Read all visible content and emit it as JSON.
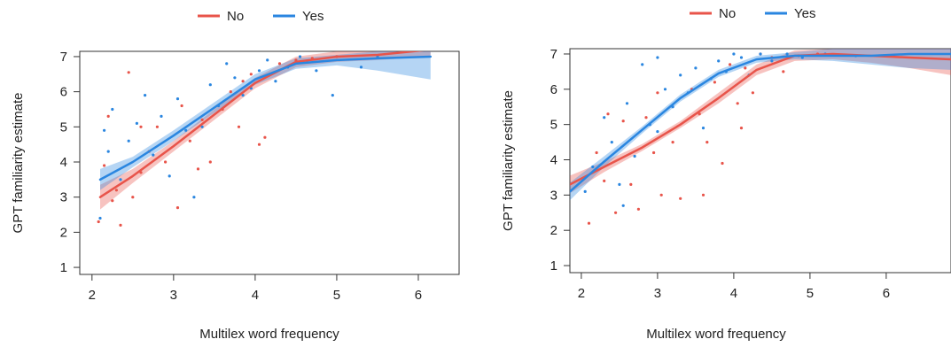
{
  "chart_data": [
    {
      "type": "scatter",
      "xlabel": "Multilex word frequency",
      "ylabel": "GPT familiarity estimate",
      "x_ticks": [
        "2",
        "3",
        "4",
        "5",
        "6"
      ],
      "y_ticks": [
        "1",
        "2",
        "3",
        "4",
        "5",
        "6",
        "7"
      ],
      "xlim": [
        1.85,
        6.5
      ],
      "ylim": [
        0.8,
        7.15
      ],
      "legend": {
        "placement": "top-center",
        "entries": [
          {
            "label": "No",
            "color": "#e8544a"
          },
          {
            "label": "Yes",
            "color": "#2a86e0"
          }
        ]
      },
      "series": [
        {
          "name": "No",
          "color": "#e8544a",
          "trend": {
            "x": [
              2.1,
              2.5,
              3.0,
              3.5,
              4.0,
              4.5,
              5.0,
              5.5,
              6.15
            ],
            "y": [
              3.0,
              3.6,
              4.45,
              5.35,
              6.25,
              6.85,
              7.0,
              7.05,
              7.2
            ],
            "lower": [
              2.65,
              3.4,
              4.3,
              5.2,
              6.1,
              6.7,
              6.85,
              6.9,
              7.0
            ],
            "upper": [
              3.35,
              3.8,
              4.6,
              5.5,
              6.4,
              7.0,
              7.15,
              7.2,
              7.4
            ]
          },
          "points": [
            [
              2.08,
              2.3
            ],
            [
              2.15,
              3.9
            ],
            [
              2.2,
              5.3
            ],
            [
              2.25,
              2.9
            ],
            [
              2.3,
              3.2
            ],
            [
              2.35,
              2.2
            ],
            [
              2.45,
              6.55
            ],
            [
              2.5,
              3.0
            ],
            [
              2.6,
              3.7
            ],
            [
              2.7,
              4.3
            ],
            [
              2.8,
              5.0
            ],
            [
              2.9,
              4.0
            ],
            [
              3.05,
              2.7
            ],
            [
              3.1,
              5.6
            ],
            [
              3.2,
              4.6
            ],
            [
              3.35,
              5.2
            ],
            [
              3.45,
              4.0
            ],
            [
              3.6,
              5.5
            ],
            [
              3.7,
              6.0
            ],
            [
              3.8,
              5.0
            ],
            [
              3.85,
              6.3
            ],
            [
              3.95,
              6.5
            ],
            [
              4.05,
              4.5
            ],
            [
              4.12,
              4.7
            ],
            [
              4.3,
              6.8
            ],
            [
              4.5,
              6.9
            ],
            [
              4.7,
              6.95
            ],
            [
              5.0,
              7.0
            ],
            [
              2.6,
              5.0
            ],
            [
              3.3,
              3.8
            ]
          ]
        },
        {
          "name": "Yes",
          "color": "#2a86e0",
          "trend": {
            "x": [
              2.1,
              2.5,
              3.0,
              3.5,
              4.0,
              4.5,
              5.0,
              5.5,
              6.15
            ],
            "y": [
              3.5,
              4.0,
              4.75,
              5.55,
              6.35,
              6.8,
              6.9,
              6.95,
              7.0
            ],
            "lower": [
              3.2,
              3.85,
              4.6,
              5.4,
              6.2,
              6.65,
              6.75,
              6.6,
              6.35
            ],
            "upper": [
              3.8,
              4.15,
              4.9,
              5.7,
              6.5,
              6.95,
              7.05,
              7.15,
              7.2
            ]
          },
          "points": [
            [
              2.1,
              2.4
            ],
            [
              2.15,
              4.9
            ],
            [
              2.2,
              4.3
            ],
            [
              2.25,
              5.5
            ],
            [
              2.35,
              3.5
            ],
            [
              2.45,
              4.6
            ],
            [
              2.55,
              5.1
            ],
            [
              2.65,
              5.9
            ],
            [
              2.75,
              4.2
            ],
            [
              2.85,
              5.3
            ],
            [
              2.95,
              3.6
            ],
            [
              3.05,
              5.8
            ],
            [
              3.15,
              4.9
            ],
            [
              3.25,
              3.0
            ],
            [
              3.35,
              5.0
            ],
            [
              3.45,
              6.2
            ],
            [
              3.55,
              5.6
            ],
            [
              3.65,
              6.8
            ],
            [
              3.75,
              6.4
            ],
            [
              3.85,
              5.9
            ],
            [
              3.95,
              6.1
            ],
            [
              4.05,
              6.6
            ],
            [
              4.15,
              6.9
            ],
            [
              4.25,
              6.3
            ],
            [
              4.4,
              6.7
            ],
            [
              4.55,
              7.0
            ],
            [
              4.75,
              6.6
            ],
            [
              4.95,
              5.9
            ],
            [
              5.3,
              6.7
            ],
            [
              5.5,
              7.0
            ]
          ]
        }
      ]
    },
    {
      "type": "scatter",
      "xlabel": "Multilex word frequency",
      "ylabel": "GPT familiarity estimate",
      "x_ticks": [
        "2",
        "3",
        "4",
        "5",
        "6"
      ],
      "y_ticks": [
        "1",
        "2",
        "3",
        "4",
        "5",
        "6",
        "7"
      ],
      "xlim": [
        1.85,
        6.85
      ],
      "ylim": [
        0.8,
        7.15
      ],
      "legend": {
        "placement": "top-center",
        "entries": [
          {
            "label": "No",
            "color": "#e8544a"
          },
          {
            "label": "Yes",
            "color": "#2a86e0"
          }
        ]
      },
      "series": [
        {
          "name": "No",
          "color": "#e8544a",
          "trend": {
            "x": [
              1.85,
              2.3,
              2.8,
              3.3,
              3.8,
              4.3,
              4.8,
              5.3,
              5.8,
              6.3,
              6.85
            ],
            "y": [
              3.3,
              3.8,
              4.35,
              5.0,
              5.75,
              6.55,
              6.95,
              7.0,
              6.95,
              6.9,
              6.85
            ],
            "lower": [
              3.05,
              3.65,
              4.25,
              4.9,
              5.6,
              6.4,
              6.8,
              6.85,
              6.75,
              6.6,
              6.4
            ],
            "upper": [
              3.55,
              3.95,
              4.45,
              5.1,
              5.9,
              6.7,
              7.1,
              7.15,
              7.15,
              7.15,
              7.2
            ]
          },
          "points": [
            [
              2.1,
              2.2
            ],
            [
              2.2,
              4.2
            ],
            [
              2.35,
              5.3
            ],
            [
              2.45,
              2.5
            ],
            [
              2.55,
              5.1
            ],
            [
              2.65,
              3.3
            ],
            [
              2.75,
              2.6
            ],
            [
              2.85,
              5.2
            ],
            [
              2.95,
              4.2
            ],
            [
              3.05,
              3.0
            ],
            [
              3.2,
              4.5
            ],
            [
              3.3,
              2.9
            ],
            [
              3.45,
              6.0
            ],
            [
              3.55,
              5.3
            ],
            [
              3.65,
              4.5
            ],
            [
              3.75,
              6.2
            ],
            [
              3.85,
              3.9
            ],
            [
              3.95,
              6.7
            ],
            [
              4.05,
              5.6
            ],
            [
              4.15,
              6.6
            ],
            [
              4.25,
              5.9
            ],
            [
              4.35,
              7.0
            ],
            [
              4.5,
              6.9
            ],
            [
              4.65,
              6.5
            ],
            [
              4.85,
              6.95
            ],
            [
              5.1,
              7.0
            ],
            [
              3.0,
              5.9
            ],
            [
              3.6,
              3.0
            ],
            [
              4.1,
              4.9
            ],
            [
              2.3,
              3.4
            ]
          ]
        },
        {
          "name": "Yes",
          "color": "#2a86e0",
          "trend": {
            "x": [
              1.85,
              2.3,
              2.8,
              3.3,
              3.8,
              4.3,
              4.8,
              5.3,
              5.8,
              6.3,
              6.85
            ],
            "y": [
              3.1,
              3.95,
              4.85,
              5.75,
              6.45,
              6.85,
              6.95,
              6.95,
              6.95,
              7.0,
              7.0
            ],
            "lower": [
              2.85,
              3.8,
              4.75,
              5.65,
              6.35,
              6.75,
              6.85,
              6.8,
              6.7,
              6.6,
              6.55
            ],
            "upper": [
              3.35,
              4.1,
              4.95,
              5.85,
              6.55,
              6.95,
              7.05,
              7.15,
              7.2,
              7.25,
              7.3
            ]
          },
          "points": [
            [
              2.05,
              3.1
            ],
            [
              2.15,
              3.8
            ],
            [
              2.3,
              5.2
            ],
            [
              2.4,
              4.5
            ],
            [
              2.5,
              3.3
            ],
            [
              2.6,
              5.6
            ],
            [
              2.7,
              4.1
            ],
            [
              2.8,
              6.7
            ],
            [
              2.9,
              5.0
            ],
            [
              3.0,
              4.8
            ],
            [
              3.1,
              6.0
            ],
            [
              3.2,
              5.5
            ],
            [
              3.3,
              6.4
            ],
            [
              3.4,
              5.9
            ],
            [
              3.5,
              6.6
            ],
            [
              3.6,
              4.9
            ],
            [
              3.7,
              6.3
            ],
            [
              3.8,
              6.8
            ],
            [
              3.9,
              6.5
            ],
            [
              4.0,
              7.0
            ],
            [
              4.1,
              6.9
            ],
            [
              4.2,
              6.4
            ],
            [
              4.35,
              7.0
            ],
            [
              4.5,
              6.8
            ],
            [
              4.7,
              7.0
            ],
            [
              4.9,
              6.9
            ],
            [
              5.2,
              7.0
            ],
            [
              5.6,
              6.95
            ],
            [
              2.55,
              2.7
            ],
            [
              3.0,
              6.9
            ]
          ]
        }
      ]
    }
  ]
}
